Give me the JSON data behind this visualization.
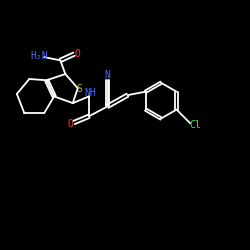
{
  "background_color": "#000000",
  "atom_colors": {
    "N": "#4466ff",
    "O": "#ff3333",
    "S": "#ccaa00",
    "Cl": "#44dd44"
  },
  "figsize": [
    2.5,
    2.5
  ],
  "dpi": 100,
  "lw": 1.3,
  "fs": 7.0
}
